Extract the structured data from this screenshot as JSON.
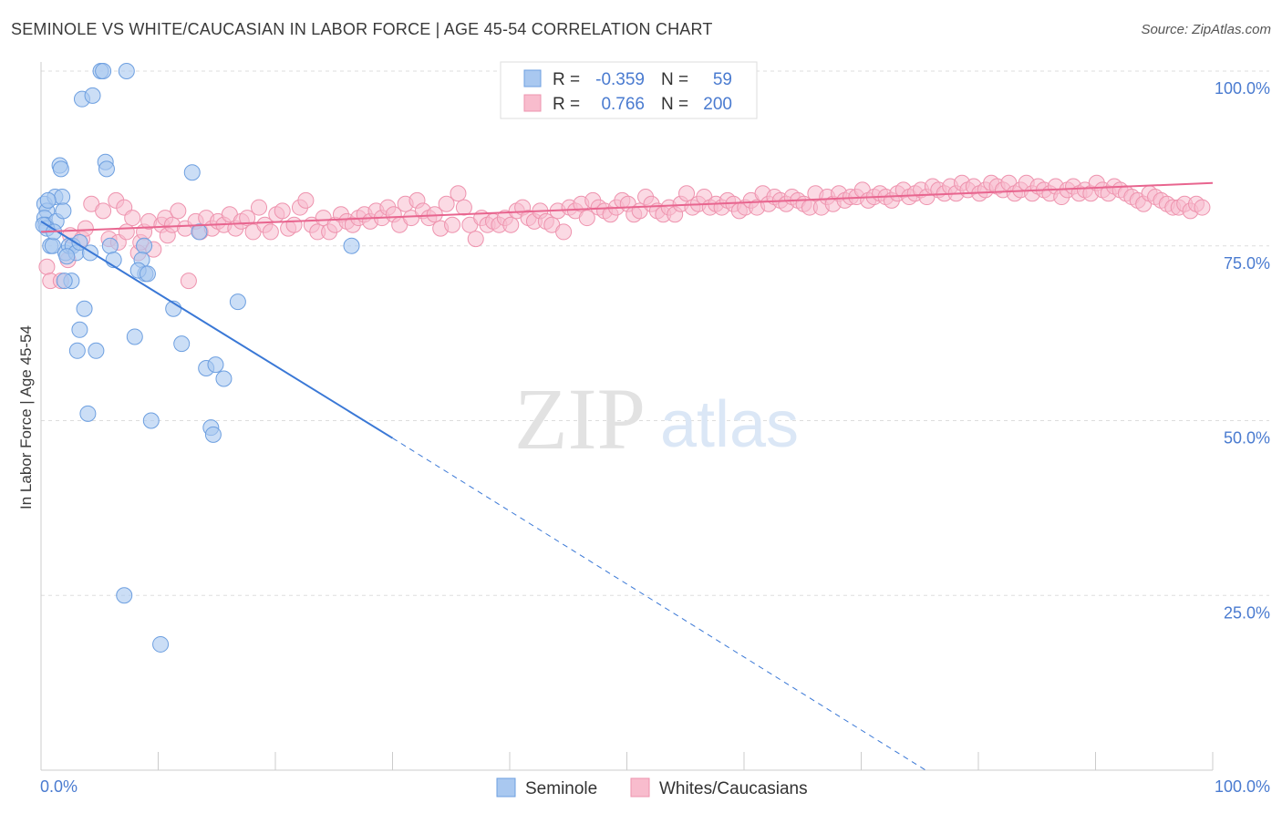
{
  "header": {
    "title": "SEMINOLE VS WHITE/CAUCASIAN IN LABOR FORCE | AGE 45-54 CORRELATION CHART",
    "source": "Source: ZipAtlas.com"
  },
  "watermark": {
    "zip": "ZIP",
    "atlas": "atlas"
  },
  "legend_stats": {
    "rows": [
      {
        "r_label": "R =",
        "r_value": "-0.359",
        "n_label": "N =",
        "n_value": "59"
      },
      {
        "r_label": "R =",
        "r_value": "0.766",
        "n_label": "N =",
        "n_value": "200"
      }
    ]
  },
  "colors": {
    "seminole_fill": "#a9c8f0",
    "seminole_stroke": "#6d9fe0",
    "seminole_line": "#3a78d6",
    "white_fill": "#f8bccd",
    "white_stroke": "#ee93ae",
    "white_line": "#e8658f",
    "tick_label": "#4a7bd0",
    "grid": "#dddddd"
  },
  "chart_data": {
    "type": "scatter",
    "xlabel": "",
    "ylabel": "In Labor Force | Age 45-54",
    "xlim": [
      0,
      100
    ],
    "ylim": [
      0,
      100
    ],
    "x_tick_labels": [
      {
        "value": 0,
        "label": "0.0%"
      },
      {
        "value": 100,
        "label": "100.0%"
      }
    ],
    "y_tick_labels": [
      {
        "value": 100,
        "label": "100.0%"
      },
      {
        "value": 75,
        "label": "75.0%"
      },
      {
        "value": 50,
        "label": "50.0%"
      },
      {
        "value": 25,
        "label": "25.0%"
      }
    ],
    "grid": true,
    "legend_position": "bottom-center",
    "series": [
      {
        "name": "Seminole",
        "r": -0.359,
        "n": 59,
        "trend": {
          "x_start": 0,
          "y_start": 78.5,
          "x_solid_end": 30,
          "y_solid_end": 47.5,
          "x_dash_end": 75.5,
          "y_dash_end": 0
        },
        "points": [
          [
            5.1,
            100
          ],
          [
            5.3,
            100
          ],
          [
            7.3,
            100
          ],
          [
            3.5,
            96
          ],
          [
            4.4,
            96.5
          ],
          [
            1.6,
            86.5
          ],
          [
            1.7,
            86
          ],
          [
            5.5,
            87
          ],
          [
            5.6,
            86
          ],
          [
            12.9,
            85.5
          ],
          [
            0.3,
            81
          ],
          [
            0.5,
            80
          ],
          [
            1.2,
            82
          ],
          [
            1.8,
            82
          ],
          [
            0.3,
            79
          ],
          [
            0.4,
            78
          ],
          [
            1.3,
            78.5
          ],
          [
            1.9,
            80
          ],
          [
            0.5,
            77.5
          ],
          [
            0.8,
            75
          ],
          [
            1.0,
            75
          ],
          [
            2.1,
            74
          ],
          [
            2.4,
            75
          ],
          [
            2.7,
            75
          ],
          [
            3.0,
            74
          ],
          [
            4.2,
            74
          ],
          [
            3.3,
            75.5
          ],
          [
            5.9,
            75
          ],
          [
            8.8,
            75
          ],
          [
            13.5,
            77
          ],
          [
            26.5,
            75
          ],
          [
            6.2,
            73
          ],
          [
            8.6,
            73
          ],
          [
            8.9,
            71
          ],
          [
            8.3,
            71.5
          ],
          [
            2.6,
            70
          ],
          [
            2.0,
            70
          ],
          [
            3.7,
            66
          ],
          [
            11.3,
            66
          ],
          [
            16.8,
            67
          ],
          [
            3.3,
            63
          ],
          [
            3.1,
            60
          ],
          [
            4.7,
            60
          ],
          [
            8.0,
            62
          ],
          [
            12.0,
            61
          ],
          [
            14.1,
            57.5
          ],
          [
            14.9,
            58
          ],
          [
            15.6,
            56
          ],
          [
            4.0,
            51
          ],
          [
            9.4,
            50
          ],
          [
            14.5,
            49
          ],
          [
            14.7,
            48
          ],
          [
            7.1,
            25
          ],
          [
            10.2,
            18
          ],
          [
            0.2,
            78
          ],
          [
            0.6,
            81.5
          ],
          [
            1.1,
            77
          ],
          [
            2.2,
            73.5
          ],
          [
            9.1,
            71
          ]
        ]
      },
      {
        "name": "Whites/Caucasians",
        "r": 0.766,
        "n": 200,
        "trend": {
          "x_start": 0,
          "y_start": 77.0,
          "x_end": 100,
          "y_end": 84.0
        },
        "points": [
          [
            0.5,
            72
          ],
          [
            0.8,
            70
          ],
          [
            1.7,
            70
          ],
          [
            2.3,
            73
          ],
          [
            2.5,
            76.5
          ],
          [
            3.5,
            76
          ],
          [
            3.8,
            77.5
          ],
          [
            4.3,
            81
          ],
          [
            5.3,
            80
          ],
          [
            5.8,
            76
          ],
          [
            6.4,
            81.5
          ],
          [
            6.6,
            75.5
          ],
          [
            7.1,
            80.5
          ],
          [
            7.3,
            77
          ],
          [
            7.8,
            79
          ],
          [
            8.3,
            74
          ],
          [
            8.5,
            75.5
          ],
          [
            8.8,
            77
          ],
          [
            9.2,
            78.5
          ],
          [
            9.6,
            74.5
          ],
          [
            10.3,
            78
          ],
          [
            10.6,
            79
          ],
          [
            10.8,
            76.5
          ],
          [
            11.2,
            78
          ],
          [
            11.7,
            80
          ],
          [
            12.3,
            77.5
          ],
          [
            12.6,
            70
          ],
          [
            13.2,
            78.5
          ],
          [
            13.6,
            77
          ],
          [
            14.1,
            79
          ],
          [
            14.6,
            77.5
          ],
          [
            15.1,
            78.5
          ],
          [
            15.6,
            78
          ],
          [
            16.1,
            79.5
          ],
          [
            16.6,
            77.5
          ],
          [
            17.1,
            78.5
          ],
          [
            17.6,
            79
          ],
          [
            18.1,
            77
          ],
          [
            18.6,
            80.5
          ],
          [
            19.1,
            78
          ],
          [
            19.6,
            77
          ],
          [
            20.1,
            79.5
          ],
          [
            20.6,
            80
          ],
          [
            21.1,
            77.5
          ],
          [
            21.6,
            78
          ],
          [
            22.1,
            80.5
          ],
          [
            22.6,
            81.5
          ],
          [
            23.1,
            78
          ],
          [
            23.6,
            77
          ],
          [
            24.1,
            79
          ],
          [
            24.6,
            77
          ],
          [
            25.1,
            78
          ],
          [
            25.6,
            79.5
          ],
          [
            26.1,
            78.5
          ],
          [
            26.6,
            78
          ],
          [
            27.1,
            79
          ],
          [
            27.6,
            79.5
          ],
          [
            28.1,
            78.5
          ],
          [
            28.6,
            80
          ],
          [
            29.1,
            79
          ],
          [
            29.6,
            80.5
          ],
          [
            30.1,
            79.5
          ],
          [
            30.6,
            78
          ],
          [
            31.1,
            81
          ],
          [
            31.6,
            79
          ],
          [
            32.1,
            81.5
          ],
          [
            32.6,
            80
          ],
          [
            33.1,
            79
          ],
          [
            33.6,
            79.5
          ],
          [
            34.1,
            77.5
          ],
          [
            34.6,
            81
          ],
          [
            35.1,
            78
          ],
          [
            35.6,
            82.5
          ],
          [
            36.1,
            80.5
          ],
          [
            36.6,
            78
          ],
          [
            37.1,
            76
          ],
          [
            37.6,
            79
          ],
          [
            38.1,
            78
          ],
          [
            38.6,
            78.5
          ],
          [
            39.1,
            78
          ],
          [
            39.6,
            79
          ],
          [
            40.1,
            78
          ],
          [
            40.6,
            80
          ],
          [
            41.1,
            80.5
          ],
          [
            41.6,
            79
          ],
          [
            42.1,
            78.5
          ],
          [
            42.6,
            80
          ],
          [
            43.1,
            78.5
          ],
          [
            43.6,
            78
          ],
          [
            44.1,
            80
          ],
          [
            44.6,
            77
          ],
          [
            45.1,
            80.5
          ],
          [
            45.6,
            80
          ],
          [
            46.1,
            81
          ],
          [
            46.6,
            79
          ],
          [
            47.1,
            81.5
          ],
          [
            47.6,
            80.5
          ],
          [
            48.1,
            80
          ],
          [
            48.6,
            79.5
          ],
          [
            49.1,
            80.5
          ],
          [
            49.6,
            81.5
          ],
          [
            50.1,
            81
          ],
          [
            50.6,
            79.5
          ],
          [
            51.1,
            80
          ],
          [
            51.6,
            82
          ],
          [
            52.1,
            81
          ],
          [
            52.6,
            80
          ],
          [
            53.1,
            79.5
          ],
          [
            53.6,
            80.5
          ],
          [
            54.1,
            79.5
          ],
          [
            54.6,
            81
          ],
          [
            55.1,
            82.5
          ],
          [
            55.6,
            80.5
          ],
          [
            56.1,
            81
          ],
          [
            56.6,
            82
          ],
          [
            57.1,
            80.5
          ],
          [
            57.6,
            81
          ],
          [
            58.1,
            80.5
          ],
          [
            58.6,
            81.5
          ],
          [
            59.1,
            81
          ],
          [
            59.6,
            80
          ],
          [
            60.1,
            80.5
          ],
          [
            60.6,
            81.5
          ],
          [
            61.1,
            80.5
          ],
          [
            61.6,
            82.5
          ],
          [
            62.1,
            81
          ],
          [
            62.6,
            82
          ],
          [
            63.1,
            81.5
          ],
          [
            63.6,
            81
          ],
          [
            64.1,
            82
          ],
          [
            64.6,
            81.5
          ],
          [
            65.1,
            81
          ],
          [
            65.6,
            80.5
          ],
          [
            66.1,
            82.5
          ],
          [
            66.6,
            80.5
          ],
          [
            67.1,
            82
          ],
          [
            67.6,
            81
          ],
          [
            68.1,
            82.5
          ],
          [
            68.6,
            81.5
          ],
          [
            69.1,
            82
          ],
          [
            69.6,
            82
          ],
          [
            70.1,
            83
          ],
          [
            70.6,
            81.5
          ],
          [
            71.1,
            82
          ],
          [
            71.6,
            82.5
          ],
          [
            72.1,
            82
          ],
          [
            72.6,
            81.5
          ],
          [
            73.1,
            82.5
          ],
          [
            73.6,
            83
          ],
          [
            74.1,
            82
          ],
          [
            74.6,
            82.5
          ],
          [
            75.1,
            83
          ],
          [
            75.6,
            82
          ],
          [
            76.1,
            83.5
          ],
          [
            76.6,
            83
          ],
          [
            77.1,
            82.5
          ],
          [
            77.6,
            83.5
          ],
          [
            78.1,
            82.5
          ],
          [
            78.6,
            84
          ],
          [
            79.1,
            83
          ],
          [
            79.6,
            83.5
          ],
          [
            80.1,
            82.5
          ],
          [
            80.6,
            83
          ],
          [
            81.1,
            84
          ],
          [
            81.6,
            83.5
          ],
          [
            82.1,
            83
          ],
          [
            82.6,
            84
          ],
          [
            83.1,
            82.5
          ],
          [
            83.6,
            83
          ],
          [
            84.1,
            84
          ],
          [
            84.6,
            82.5
          ],
          [
            85.1,
            83.5
          ],
          [
            85.6,
            83
          ],
          [
            86.1,
            82.5
          ],
          [
            86.6,
            83.5
          ],
          [
            87.1,
            82
          ],
          [
            87.6,
            83
          ],
          [
            88.1,
            83.5
          ],
          [
            88.6,
            82.5
          ],
          [
            89.1,
            83
          ],
          [
            89.6,
            82.5
          ],
          [
            90.1,
            84
          ],
          [
            90.6,
            83
          ],
          [
            91.1,
            82.5
          ],
          [
            91.6,
            83.5
          ],
          [
            92.1,
            83
          ],
          [
            92.6,
            82.5
          ],
          [
            93.1,
            82
          ],
          [
            93.6,
            81.5
          ],
          [
            94.1,
            81
          ],
          [
            94.6,
            82.5
          ],
          [
            95.1,
            82
          ],
          [
            95.6,
            81.5
          ],
          [
            96.1,
            81
          ],
          [
            96.6,
            80.5
          ],
          [
            97.1,
            80.5
          ],
          [
            97.6,
            81
          ],
          [
            98.1,
            80
          ],
          [
            98.6,
            81
          ],
          [
            99.1,
            80.5
          ]
        ]
      }
    ]
  }
}
